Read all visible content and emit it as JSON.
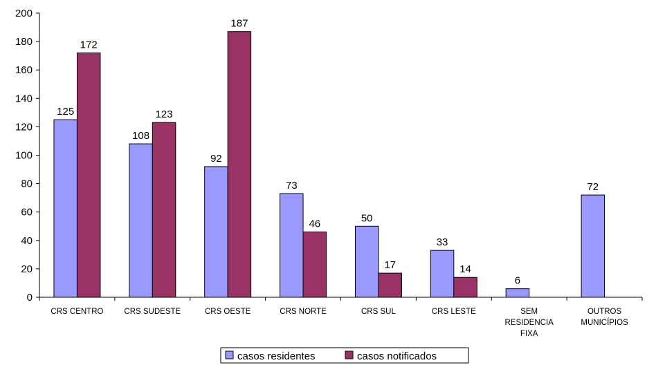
{
  "chart_data": {
    "type": "bar",
    "categories": [
      [
        "CRS CENTRO"
      ],
      [
        "CRS SUDESTE"
      ],
      [
        "CRS OESTE"
      ],
      [
        "CRS NORTE"
      ],
      [
        "CRS SUL"
      ],
      [
        "CRS LESTE"
      ],
      [
        "SEM",
        "RESIDENCIA",
        "FIXA"
      ],
      [
        "OUTROS",
        "MUNICÍPIOS"
      ]
    ],
    "series": [
      {
        "name": "casos residentes",
        "color": "#9999ff",
        "values": [
          125,
          108,
          92,
          73,
          50,
          33,
          6,
          72
        ]
      },
      {
        "name": "casos notificados",
        "color": "#993366",
        "values": [
          172,
          123,
          187,
          46,
          17,
          14,
          null,
          null
        ]
      }
    ],
    "ylim": [
      0,
      200
    ],
    "yticks": [
      0,
      20,
      40,
      60,
      80,
      100,
      120,
      140,
      160,
      180,
      200
    ],
    "grid": false,
    "legend": "bottom-center",
    "title": "",
    "xlabel": "",
    "ylabel": ""
  }
}
